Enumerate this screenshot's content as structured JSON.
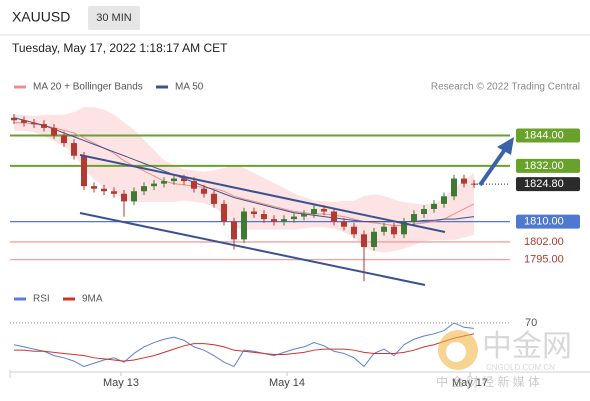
{
  "header": {
    "symbol": "XAUUSD",
    "timeframe": "30 MIN",
    "timestamp": "Tuesday, May 17, 2022 1:18:17 AM CET"
  },
  "watermark": {
    "brand": "中金网",
    "site": "CNGOLD.COM.CN",
    "tagline": "中 金 财 经 新 媒 体"
  },
  "chart_data": [
    {
      "type": "candlestick",
      "source": "Research © 2022 Trading Central",
      "up_color": "#3d7a34",
      "down_color": "#b23a32",
      "open": [
        1851,
        1850,
        1849,
        1848.5,
        1847,
        1844,
        1841,
        1836,
        1824,
        1823,
        1822,
        1821,
        1818,
        1822,
        1824,
        1825,
        1826,
        1827,
        1826,
        1823,
        1821,
        1817,
        1810,
        1803,
        1814,
        1813,
        1811,
        1810,
        1811,
        1812,
        1813,
        1815,
        1814,
        1810,
        1808,
        1805,
        1800,
        1806,
        1808,
        1805,
        1810,
        1813,
        1815,
        1817,
        1820,
        1827,
        1825
      ],
      "high": [
        1852.5,
        1851.5,
        1850.5,
        1850,
        1848.5,
        1845.5,
        1842.5,
        1837.5,
        1825.5,
        1824.5,
        1823.5,
        1822.5,
        1823.5,
        1825.5,
        1826.5,
        1827.5,
        1828.5,
        1828.5,
        1827.5,
        1824.5,
        1822.5,
        1818.5,
        1811.5,
        1815.5,
        1815.5,
        1814.5,
        1812.5,
        1812.5,
        1813.5,
        1814.5,
        1816.5,
        1816.5,
        1815.5,
        1811.5,
        1809.5,
        1806.5,
        1807.5,
        1809.5,
        1809.5,
        1811.5,
        1814.5,
        1816.5,
        1818.5,
        1821.5,
        1828.5,
        1828.5,
        1826.5
      ],
      "low": [
        1848.5,
        1847.5,
        1847,
        1845.5,
        1842.5,
        1839.5,
        1834.5,
        1822.5,
        1821.5,
        1820.5,
        1819.5,
        1812,
        1816.5,
        1820.5,
        1822.5,
        1823.5,
        1824.5,
        1824.5,
        1821.5,
        1819.5,
        1815.5,
        1808.5,
        1799,
        1801.5,
        1811.5,
        1809.5,
        1808.5,
        1808.5,
        1809.5,
        1810.5,
        1811.5,
        1812.5,
        1808.5,
        1806.5,
        1803.5,
        1786.5,
        1798.5,
        1804.5,
        1803.5,
        1803.5,
        1808.5,
        1811.5,
        1813.5,
        1815.5,
        1818.5,
        1823.5,
        1823.3
      ],
      "close": [
        1850,
        1849,
        1848.5,
        1847,
        1844,
        1841,
        1836,
        1824,
        1823,
        1822,
        1821,
        1818,
        1822,
        1824,
        1825,
        1826,
        1827,
        1826,
        1823,
        1821,
        1817,
        1810,
        1803,
        1814,
        1813,
        1811,
        1810,
        1811,
        1812,
        1813,
        1815,
        1814,
        1810,
        1808,
        1805,
        1800,
        1806,
        1808,
        1805,
        1810,
        1813,
        1815,
        1817,
        1820,
        1827,
        1825,
        1824.8
      ],
      "indicators": [
        {
          "name": "MA 20 + Bollinger Bands",
          "color": "#ef8d8d",
          "band_color": "#fde3e3",
          "values": [
            1849,
            1849,
            1848.5,
            1848,
            1847,
            1846,
            1845,
            1843,
            1841,
            1839,
            1837,
            1834,
            1832,
            1830,
            1828,
            1826,
            1825,
            1824.5,
            1824,
            1823.5,
            1823,
            1822,
            1820,
            1819,
            1818,
            1817,
            1816,
            1815,
            1814,
            1813.5,
            1813,
            1813,
            1812.5,
            1812,
            1811,
            1810,
            1809.5,
            1809,
            1808.5,
            1808.5,
            1809,
            1809.5,
            1810,
            1811,
            1813,
            1815,
            1817
          ],
          "upper": [
            1852,
            1852,
            1851.5,
            1852,
            1852,
            1852,
            1853,
            1855,
            1855,
            1854,
            1852,
            1849,
            1846,
            1842,
            1838,
            1834,
            1832,
            1830.5,
            1830,
            1829.5,
            1830,
            1831,
            1832,
            1831,
            1829,
            1827,
            1825,
            1823,
            1821,
            1819.5,
            1818,
            1818,
            1817.5,
            1818,
            1818,
            1820,
            1820.5,
            1820,
            1818.5,
            1817.5,
            1817,
            1816.5,
            1817,
            1819,
            1823,
            1826,
            1829
          ],
          "lower": [
            1846,
            1846,
            1845.5,
            1844,
            1842,
            1840,
            1837,
            1831,
            1827,
            1824,
            1822,
            1819,
            1818,
            1818,
            1818,
            1818,
            1818,
            1818.5,
            1818,
            1817.5,
            1816,
            1813,
            1808,
            1807,
            1807,
            1807,
            1807,
            1807,
            1807,
            1807.5,
            1808,
            1808,
            1807.5,
            1806,
            1804,
            1800,
            1798.5,
            1798,
            1798.5,
            1799.5,
            1801,
            1802.5,
            1803,
            1803,
            1803,
            1804,
            1805
          ]
        },
        {
          "name": "MA 50",
          "color": "#3a5390",
          "values": [
            1851,
            1850,
            1849,
            1848,
            1846.5,
            1845,
            1843.5,
            1842,
            1840.5,
            1839,
            1837.5,
            1836,
            1834.5,
            1833,
            1831.5,
            1830,
            1828.5,
            1827,
            1825.5,
            1824,
            1822.5,
            1821,
            1819.5,
            1818.5,
            1817.5,
            1816.5,
            1815.5,
            1814.5,
            1813.5,
            1813,
            1812.5,
            1812,
            1811.5,
            1811,
            1810.5,
            1810,
            1810,
            1810,
            1810,
            1810,
            1810,
            1810.5,
            1810.5,
            1811,
            1811,
            1811.5,
            1812
          ]
        }
      ],
      "levels": [
        {
          "value": 1844,
          "label": "1844.00",
          "color": "#68a22a",
          "boxed": true
        },
        {
          "value": 1832,
          "label": "1832.00",
          "color": "#68a22a",
          "boxed": true
        },
        {
          "value": 1810,
          "label": "1810.00",
          "color": "#4f79cf",
          "boxed": true
        },
        {
          "value": 1802,
          "label": "1802.00",
          "color": "#f2a0a0",
          "boxed": false
        },
        {
          "value": 1795,
          "label": "1795.00",
          "color": "#f2a0a0",
          "boxed": false
        }
      ],
      "last": {
        "value": 1824.8,
        "label": "1824.80",
        "color": "#2b2b2b"
      },
      "ylim": [
        1785,
        1858
      ]
    },
    {
      "type": "line",
      "series": [
        {
          "name": "RSI",
          "color": "#5b7fdc",
          "values": [
            50,
            48,
            46,
            44,
            40,
            38,
            35,
            30,
            33,
            36,
            38,
            34,
            42,
            48,
            52,
            55,
            57,
            54,
            48,
            45,
            40,
            34,
            30,
            45,
            44,
            42,
            40,
            43,
            46,
            48,
            52,
            49,
            44,
            42,
            38,
            30,
            42,
            46,
            40,
            50,
            55,
            58,
            60,
            63,
            70,
            66,
            65
          ]
        },
        {
          "name": "9MA",
          "color": "#d0332b",
          "values": [
            45,
            45,
            44,
            44,
            43,
            42,
            41,
            40,
            38,
            37,
            36,
            35,
            36,
            38,
            40,
            43,
            46,
            49,
            51,
            51,
            50,
            48,
            45,
            44,
            43,
            42,
            41,
            41,
            42,
            43,
            45,
            46,
            46,
            46,
            45,
            43,
            42,
            42,
            42,
            43,
            45,
            48,
            50,
            53,
            56,
            58,
            60
          ]
        }
      ],
      "ylim": [
        25,
        80
      ],
      "yticks": [
        70
      ],
      "xticks": [
        {
          "value": 10.7,
          "label": "May 13"
        },
        {
          "value": 27.3,
          "label": "May 14"
        },
        {
          "value": 45.6,
          "label": "May 17"
        }
      ]
    }
  ]
}
